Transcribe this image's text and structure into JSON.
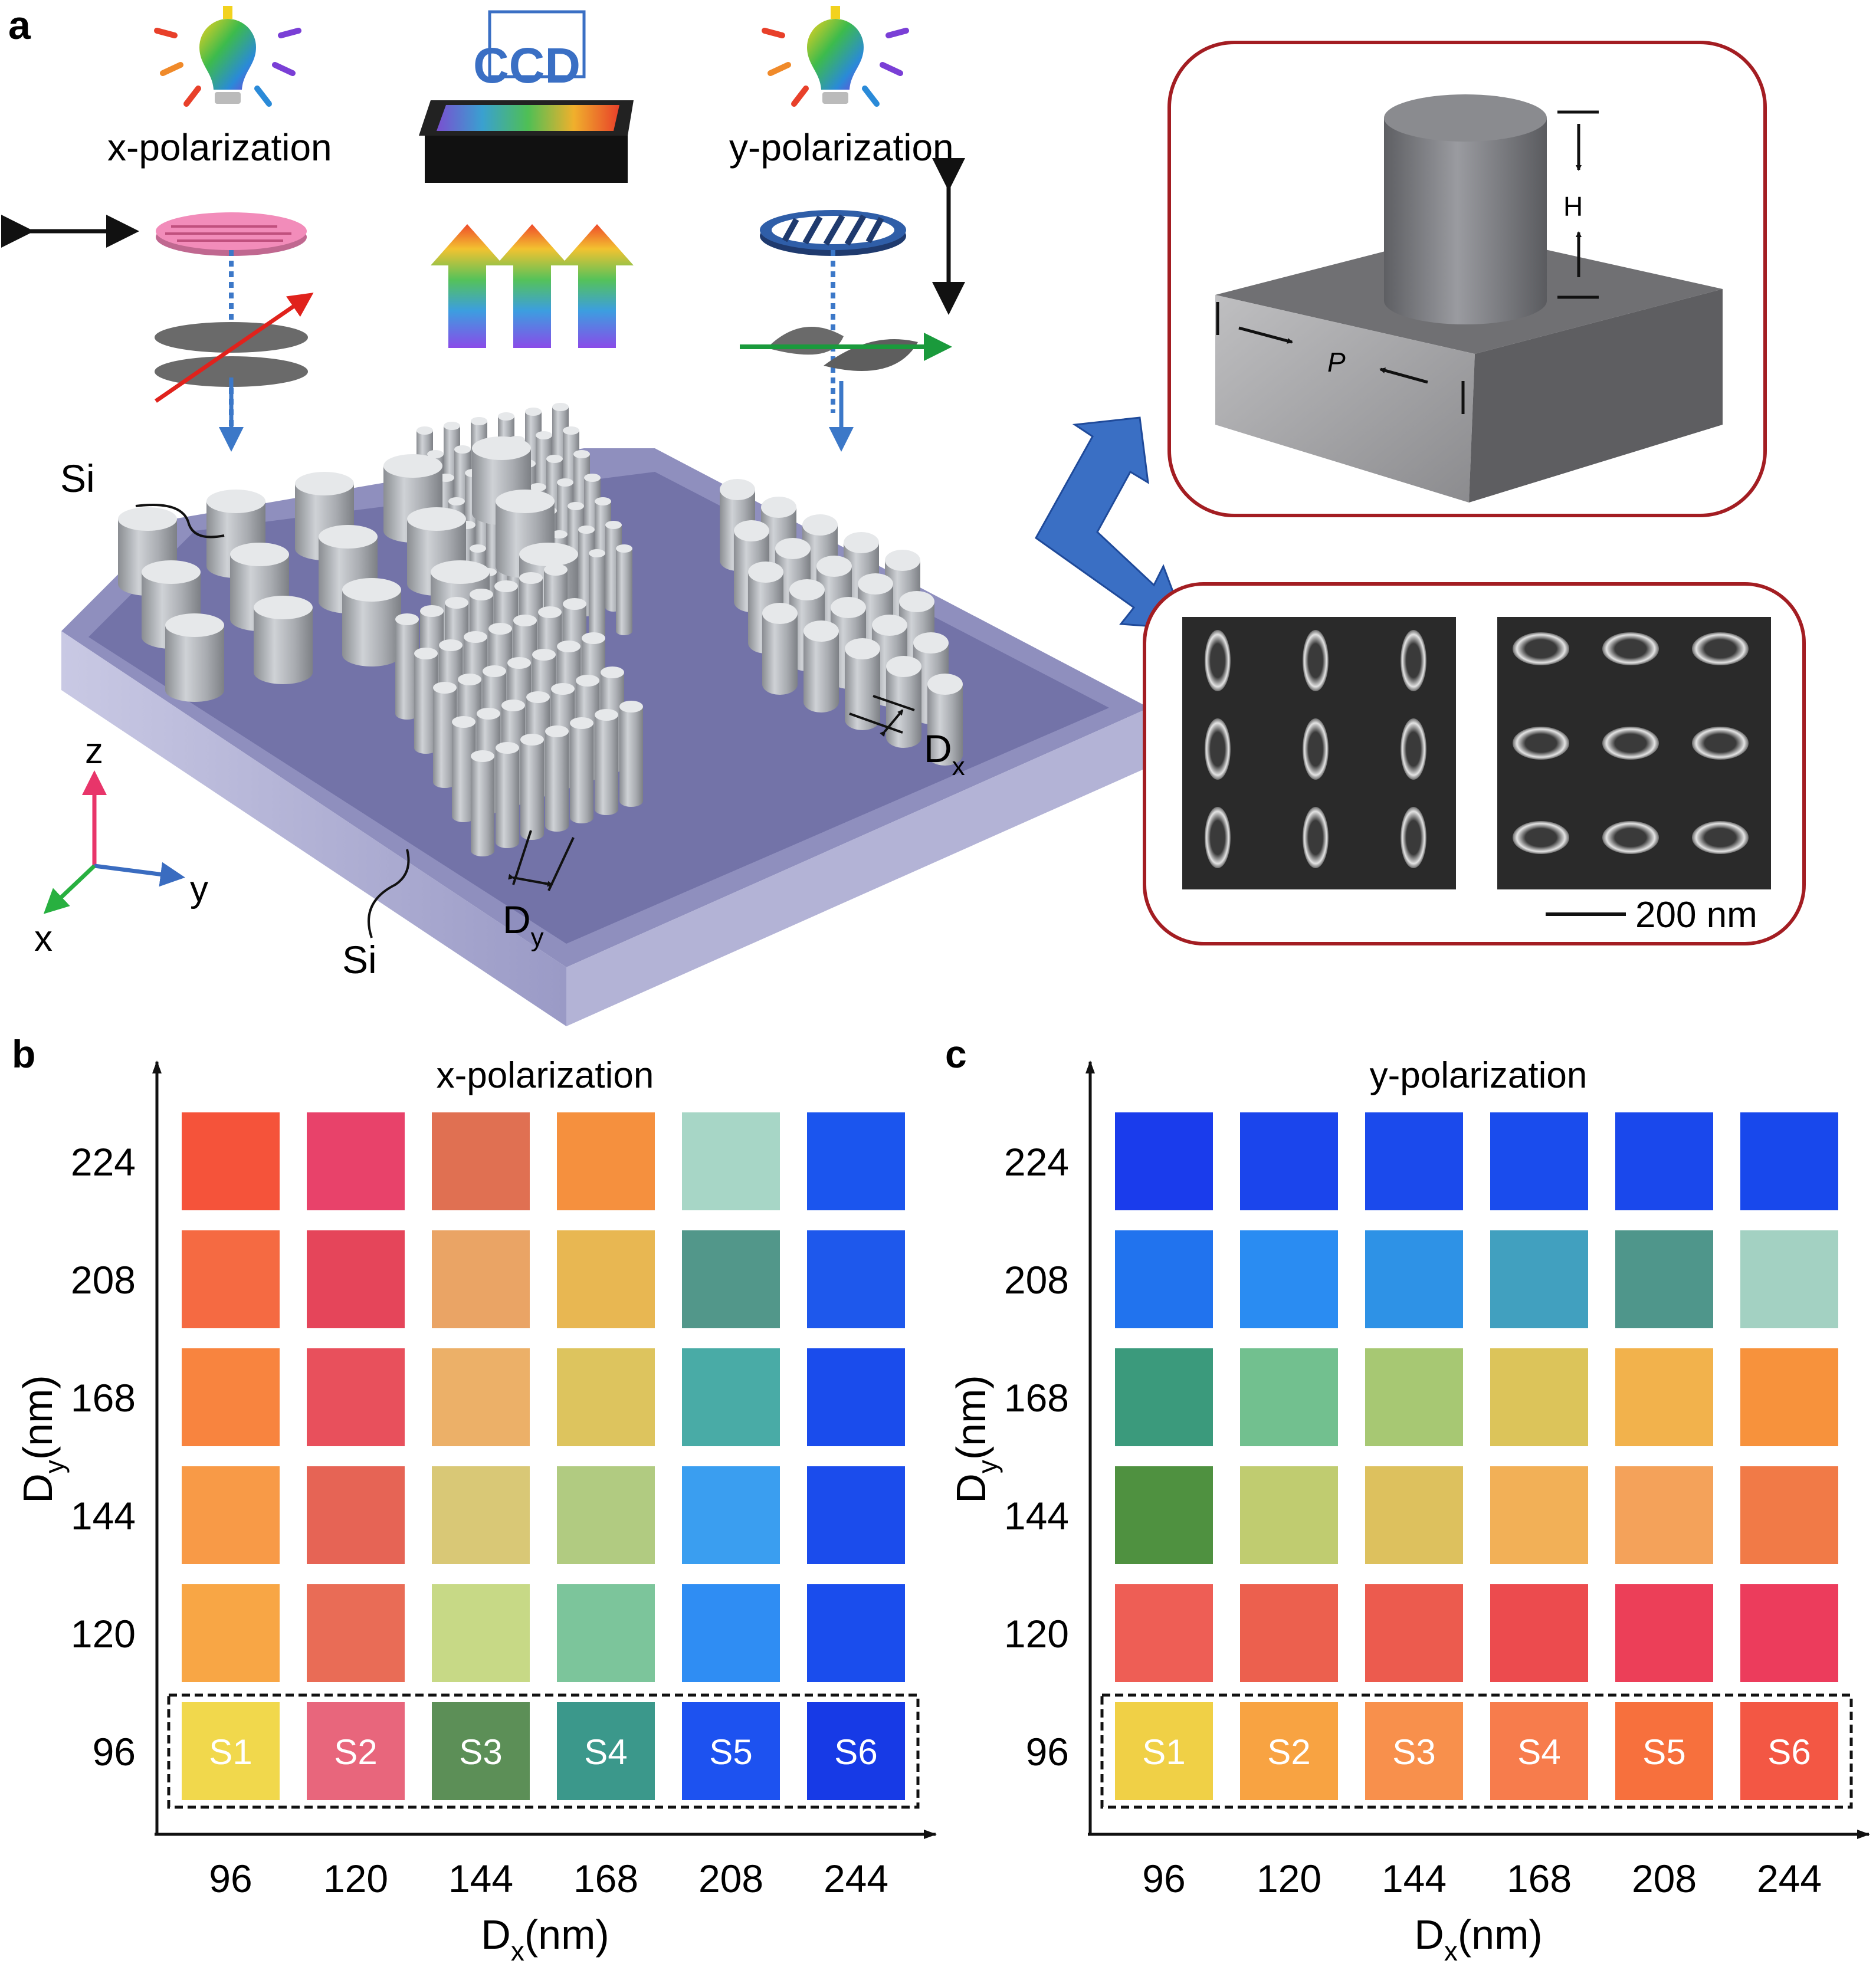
{
  "panel_a": {
    "label": "a",
    "ccd_label": "CCD",
    "x_pol_label": "x-polarization",
    "y_pol_label": "y-polarization",
    "si_top_label": "Si",
    "si_bottom_label": "Si",
    "axis_z": "z",
    "axis_y": "y",
    "axis_x": "x",
    "dx_main": "D",
    "dx_sub": "x",
    "dy_main": "D",
    "dy_sub": "y",
    "inset_H": "H",
    "inset_P": "P",
    "scale_bar": "200 nm"
  },
  "colors": {
    "frame": "#a31d22",
    "blue_arrow": "#3a6fc4",
    "substrate": "#a6a6cc",
    "sem_bg": "#2a2a2a"
  },
  "chart_data": [
    {
      "type": "heatmap",
      "label": "b",
      "title": "x-polarization",
      "xlabel_main": "D",
      "xlabel_sub": "x",
      "xlabel_unit": "(nm)",
      "ylabel_main": "D",
      "ylabel_sub": "y",
      "ylabel_unit": "(nm)",
      "x_ticks": [
        "96",
        "120",
        "144",
        "168",
        "208",
        "244"
      ],
      "y_ticks": [
        "224",
        "208",
        "168",
        "144",
        "120",
        "96"
      ],
      "sample_labels": [
        "S1",
        "S2",
        "S3",
        "S4",
        "S5",
        "S6"
      ],
      "cells": [
        [
          "#f5533a",
          "#e8426a",
          "#e07052",
          "#f5903e",
          "#a7d6c6",
          "#1b55ee"
        ],
        [
          "#f56a42",
          "#e5455a",
          "#eaa465",
          "#e8b752",
          "#52978a",
          "#1e58ec"
        ],
        [
          "#f8843f",
          "#e8505c",
          "#ecb068",
          "#ddc45e",
          "#49aba6",
          "#1a4cec"
        ],
        [
          "#f89a47",
          "#e66455",
          "#d9c876",
          "#b1cb81",
          "#3a9ef0",
          "#1b4cec"
        ],
        [
          "#f8a645",
          "#e96c56",
          "#c7d986",
          "#7cc59b",
          "#2f8df3",
          "#1a4ded"
        ],
        [
          "#f1d84c",
          "#e8667c",
          "#5c8f57",
          "#3b988b",
          "#1d52f0",
          "#173ae6"
        ]
      ]
    },
    {
      "type": "heatmap",
      "label": "c",
      "title": "y-polarization",
      "xlabel_main": "D",
      "xlabel_sub": "x",
      "xlabel_unit": "(nm)",
      "ylabel_main": "D",
      "ylabel_sub": "y",
      "ylabel_unit": "(nm)",
      "x_ticks": [
        "96",
        "120",
        "144",
        "168",
        "208",
        "244"
      ],
      "y_ticks": [
        "224",
        "208",
        "168",
        "144",
        "120",
        "96"
      ],
      "sample_labels": [
        "S1",
        "S2",
        "S3",
        "S4",
        "S5",
        "S6"
      ],
      "cells": [
        [
          "#1a3cec",
          "#1b45ec",
          "#1b4aec",
          "#1a4ced",
          "#1a48ec",
          "#1848ec"
        ],
        [
          "#2173ee",
          "#2a8cf2",
          "#2e92e6",
          "#41a0bf",
          "#4f968b",
          "#a3d1c2"
        ],
        [
          "#3b9a7c",
          "#72c08f",
          "#a7c873",
          "#dcc45a",
          "#f2b24c",
          "#f7923c"
        ],
        [
          "#4f9140",
          "#c0cc70",
          "#ddc15e",
          "#f2b057",
          "#f4a25a",
          "#f17a47"
        ],
        [
          "#ee5e55",
          "#ec604e",
          "#ec5b4e",
          "#ec4b4e",
          "#ec3f58",
          "#ec3c5c"
        ],
        [
          "#f0d046",
          "#f8a342",
          "#f8904c",
          "#f77c4c",
          "#f7703d",
          "#f35744"
        ]
      ]
    }
  ]
}
